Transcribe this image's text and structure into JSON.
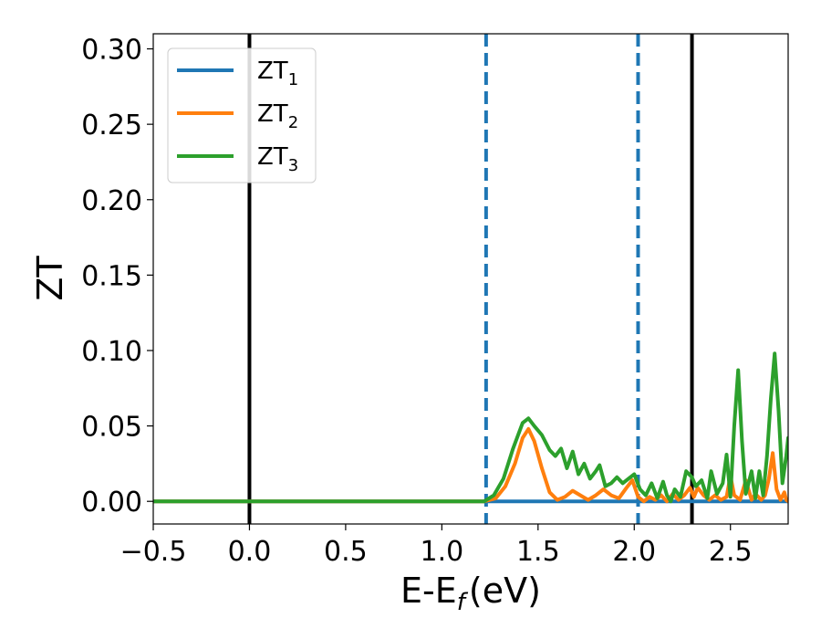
{
  "chart_data": {
    "type": "line",
    "title": "",
    "xlabel": "E-E",
    "xlabel_sub": "f",
    "xlabel_unit": "(eV)",
    "ylabel": "ZT",
    "xlim": [
      -0.5,
      2.8
    ],
    "ylim": [
      -0.015,
      0.31
    ],
    "xticks": [
      -0.5,
      0.0,
      0.5,
      1.0,
      1.5,
      2.0,
      2.5
    ],
    "xtick_labels": [
      "−0.5",
      "0.0",
      "0.5",
      "1.0",
      "1.5",
      "2.0",
      "2.5"
    ],
    "yticks": [
      0.0,
      0.05,
      0.1,
      0.15,
      0.2,
      0.25,
      0.3
    ],
    "ytick_labels": [
      "0.00",
      "0.05",
      "0.10",
      "0.15",
      "0.20",
      "0.25",
      "0.30"
    ],
    "grid": false,
    "legend_position": "top-left",
    "vertical_lines": [
      {
        "x": 0.0,
        "style": "solid",
        "color": "#000000"
      },
      {
        "x": 2.3,
        "style": "solid",
        "color": "#000000"
      },
      {
        "x": 1.23,
        "style": "dashed",
        "color": "#1f77b4"
      },
      {
        "x": 2.02,
        "style": "dashed",
        "color": "#1f77b4"
      }
    ],
    "series": [
      {
        "name": "ZT",
        "name_sub": "1",
        "color": "#1f77b4",
        "x": [
          -0.5,
          2.8
        ],
        "y": [
          0.0,
          0.0
        ]
      },
      {
        "name": "ZT",
        "name_sub": "2",
        "color": "#ff7f0e",
        "x": [
          -0.5,
          1.22,
          1.28,
          1.33,
          1.38,
          1.42,
          1.45,
          1.48,
          1.52,
          1.56,
          1.6,
          1.64,
          1.68,
          1.72,
          1.76,
          1.8,
          1.84,
          1.88,
          1.92,
          1.96,
          1.99,
          2.02,
          2.05,
          2.08,
          2.11,
          2.14,
          2.17,
          2.2,
          2.23,
          2.26,
          2.29,
          2.31,
          2.33,
          2.36,
          2.39,
          2.42,
          2.45,
          2.48,
          2.5,
          2.52,
          2.55,
          2.58,
          2.61,
          2.63,
          2.66,
          2.68,
          2.7,
          2.72,
          2.74,
          2.76,
          2.78,
          2.79,
          2.8
        ],
        "y": [
          0.0,
          0.0,
          0.002,
          0.01,
          0.025,
          0.042,
          0.048,
          0.04,
          0.022,
          0.006,
          0.001,
          0.003,
          0.007,
          0.004,
          0.001,
          0.004,
          0.008,
          0.004,
          0.002,
          0.009,
          0.014,
          0.003,
          0.0,
          0.003,
          0.001,
          0.004,
          0.0,
          0.005,
          0.001,
          0.004,
          0.009,
          0.003,
          0.009,
          0.004,
          0.001,
          0.004,
          0.001,
          0.003,
          0.017,
          0.004,
          0.001,
          0.014,
          0.001,
          0.005,
          0.001,
          0.004,
          0.015,
          0.032,
          0.008,
          0.001,
          0.006,
          0.001,
          0.0
        ]
      },
      {
        "name": "ZT",
        "name_sub": "3",
        "color": "#2ca02c",
        "x": [
          -0.5,
          1.22,
          1.27,
          1.32,
          1.37,
          1.42,
          1.45,
          1.48,
          1.52,
          1.56,
          1.59,
          1.62,
          1.65,
          1.68,
          1.71,
          1.74,
          1.77,
          1.8,
          1.82,
          1.85,
          1.88,
          1.91,
          1.94,
          1.97,
          2.0,
          2.03,
          2.06,
          2.09,
          2.12,
          2.15,
          2.17,
          2.19,
          2.21,
          2.24,
          2.27,
          2.3,
          2.32,
          2.35,
          2.38,
          2.4,
          2.43,
          2.46,
          2.48,
          2.5,
          2.52,
          2.54,
          2.56,
          2.58,
          2.61,
          2.63,
          2.65,
          2.67,
          2.69,
          2.71,
          2.73,
          2.75,
          2.77,
          2.79,
          2.8
        ],
        "y": [
          0.0,
          0.0,
          0.004,
          0.015,
          0.035,
          0.052,
          0.055,
          0.05,
          0.044,
          0.034,
          0.03,
          0.035,
          0.022,
          0.033,
          0.018,
          0.025,
          0.015,
          0.02,
          0.024,
          0.01,
          0.012,
          0.016,
          0.012,
          0.015,
          0.018,
          0.008,
          0.004,
          0.012,
          0.002,
          0.013,
          0.004,
          0.0,
          0.008,
          0.003,
          0.02,
          0.016,
          0.01,
          0.014,
          0.002,
          0.02,
          0.005,
          0.012,
          0.031,
          0.003,
          0.05,
          0.087,
          0.04,
          0.005,
          0.02,
          0.002,
          0.02,
          0.004,
          0.03,
          0.068,
          0.098,
          0.06,
          0.012,
          0.03,
          0.042
        ]
      }
    ]
  }
}
